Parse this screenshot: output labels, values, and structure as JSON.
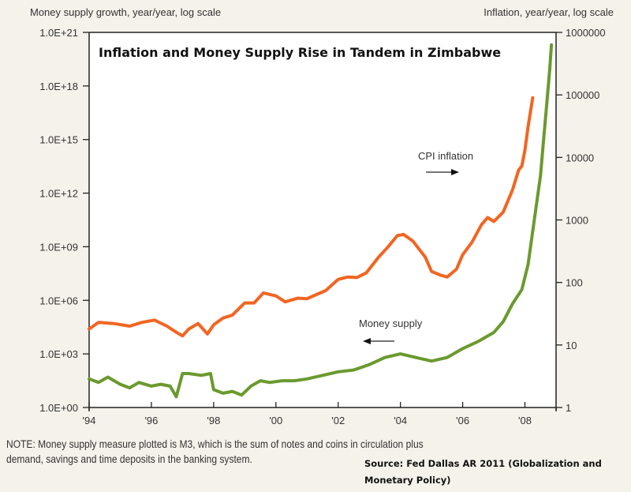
{
  "chart_data": {
    "type": "line",
    "title": "Inflation and Money Supply Rise in Tandem in Zimbabwe",
    "ylabel_left": "Money supply growth, year/year, log scale",
    "ylabel_right": "Inflation, year/year, log scale",
    "xlabel": "",
    "x_ticks": [
      "'94",
      "'96",
      "'98",
      "'00",
      "'02",
      "'04",
      "'06",
      "'08"
    ],
    "x_tick_values": [
      1994,
      1996,
      1998,
      2000,
      2002,
      2004,
      2006,
      2008
    ],
    "xlim": [
      1994,
      2009
    ],
    "y_left_ticks": [
      "1.0E+21",
      "1.0E+18",
      "1.0E+15",
      "1.0E+12",
      "1.0E+09",
      "1.0E+06",
      "1.0E+03",
      "1.0E+00"
    ],
    "y_left_tick_exponents": [
      21,
      18,
      15,
      12,
      9,
      6,
      3,
      0
    ],
    "ylim_left_log10": [
      0,
      21
    ],
    "y_right_ticks": [
      "1000000",
      "100000",
      "10000",
      "1000",
      "100",
      "10",
      "1"
    ],
    "y_right_tick_exponents": [
      6,
      5,
      4,
      3,
      2,
      1,
      0
    ],
    "ylim_right_log10": [
      0,
      6
    ],
    "scale": "log",
    "grid": false,
    "series": [
      {
        "name": "CPI inflation",
        "axis": "right",
        "color": "#f26522",
        "x": [
          1994.0,
          1994.3,
          1994.8,
          1995.3,
          1995.7,
          1996.1,
          1996.5,
          1996.8,
          1997.0,
          1997.2,
          1997.5,
          1997.8,
          1998.0,
          1998.3,
          1998.6,
          1999.0,
          1999.3,
          1999.6,
          2000.0,
          2000.3,
          2000.7,
          2001.0,
          2001.3,
          2001.6,
          2002.0,
          2002.3,
          2002.6,
          2002.9,
          2003.3,
          2003.6,
          2003.9,
          2004.1,
          2004.4,
          2004.8,
          2005.0,
          2005.3,
          2005.5,
          2005.8,
          2006.0,
          2006.3,
          2006.6,
          2006.8,
          2007.0,
          2007.3,
          2007.6,
          2007.8,
          2007.9,
          2008.0,
          2008.1,
          2008.25
        ],
        "values": [
          18,
          23,
          22,
          20,
          23,
          25,
          20,
          16,
          14,
          18,
          22,
          15,
          21,
          27,
          30,
          47,
          47,
          68,
          61,
          49,
          56,
          55,
          64,
          74,
          112,
          122,
          120,
          142,
          254,
          370,
          560,
          585,
          458,
          254,
          150,
          130,
          122,
          163,
          277,
          440,
          835,
          1090,
          945,
          1330,
          3000,
          6300,
          7300,
          13000,
          31000,
          90000
        ]
      },
      {
        "name": "Money supply",
        "axis": "left",
        "color": "#6a9a2e",
        "x": [
          1994.0,
          1994.3,
          1994.6,
          1995.0,
          1995.3,
          1995.6,
          1996.0,
          1996.3,
          1996.6,
          1996.8,
          1997.0,
          1997.2,
          1997.6,
          1997.9,
          1998.0,
          1998.3,
          1998.6,
          1998.9,
          1999.2,
          1999.5,
          1999.8,
          2000.2,
          2000.6,
          2001.0,
          2001.5,
          2002.0,
          2002.5,
          2003.0,
          2003.5,
          2004.0,
          2004.5,
          2005.0,
          2005.5,
          2006.0,
          2006.5,
          2007.0,
          2007.3,
          2007.6,
          2007.9,
          2008.1,
          2008.3,
          2008.5,
          2008.6,
          2008.7,
          2008.8,
          2008.85
        ],
        "log10_values": [
          1.6,
          1.4,
          1.7,
          1.3,
          1.1,
          1.4,
          1.2,
          1.3,
          1.2,
          0.6,
          1.9,
          1.9,
          1.8,
          1.9,
          1.0,
          0.8,
          0.9,
          0.7,
          1.2,
          1.5,
          1.4,
          1.5,
          1.5,
          1.6,
          1.8,
          2.0,
          2.1,
          2.4,
          2.8,
          3.0,
          2.8,
          2.6,
          2.8,
          3.3,
          3.7,
          4.2,
          4.8,
          5.8,
          6.6,
          8.0,
          10.5,
          13.0,
          15.0,
          17.0,
          19.0,
          20.3
        ]
      }
    ],
    "annotations": [
      {
        "text": "CPI inflation",
        "arrow": "right"
      },
      {
        "text": "Money supply",
        "arrow": "left"
      }
    ]
  },
  "note": "NOTE: Money supply measure plotted is M3, which is the sum of notes and coins in circulation plus demand, savings and time deposits in the banking system.",
  "note_line1": "NOTE: Money supply measure plotted is M3, which is the sum of notes and coins in circulation plus",
  "note_line2": "demand, savings and time deposits in the banking system.",
  "source": "Source: Fed Dallas AR 2011 (Globalization and Monetary Policy)"
}
